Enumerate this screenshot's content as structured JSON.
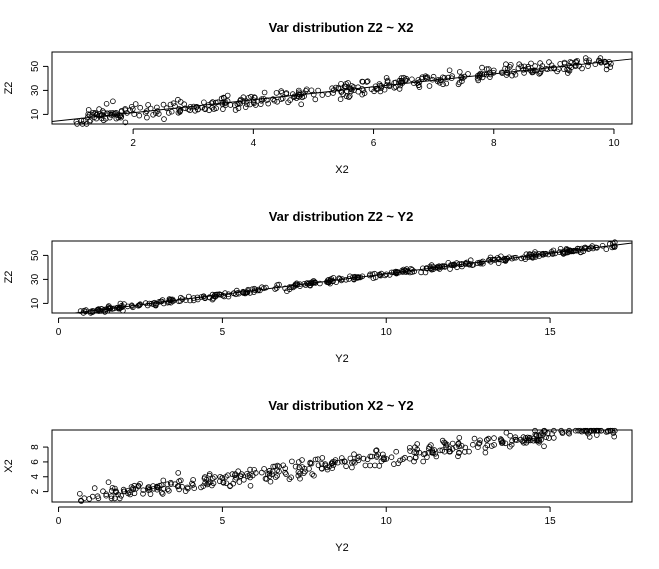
{
  "chart_data": [
    {
      "type": "scatter",
      "title": "Var distribution Z2 ~ X2",
      "xlabel": "X2",
      "ylabel": "Z2",
      "xlim": [
        0.65,
        10.3
      ],
      "ylim": [
        2,
        62
      ],
      "xticks": [
        2,
        4,
        6,
        8,
        10
      ],
      "yticks": [
        10,
        30,
        50
      ],
      "n_points": 400,
      "x_range": [
        1.05,
        9.95
      ],
      "fit_line": {
        "intercept": 0.6,
        "slope": 5.4
      },
      "noise_sd": 3.2,
      "seed": 11
    },
    {
      "type": "scatter",
      "title": "Var distribution Z2 ~ Y2",
      "xlabel": "Y2",
      "ylabel": "Z2",
      "xlim": [
        -0.2,
        17.5
      ],
      "ylim": [
        2,
        62
      ],
      "xticks": [
        0,
        5,
        10,
        15
      ],
      "yticks": [
        10,
        30,
        50
      ],
      "n_points": 400,
      "x_range": [
        0.6,
        17.0
      ],
      "fit_line": {
        "intercept": 0.3,
        "slope": 3.43
      },
      "noise_sd": 1.1,
      "seed": 23
    },
    {
      "type": "scatter",
      "title": "Var distribution X2 ~ Y2",
      "xlabel": "Y2",
      "ylabel": "X2",
      "xlim": [
        -0.2,
        17.5
      ],
      "ylim": [
        0.6,
        10.3
      ],
      "xticks": [
        0,
        5,
        10,
        15
      ],
      "yticks": [
        2,
        4,
        6,
        8
      ],
      "n_points": 400,
      "x_range": [
        0.6,
        17.0
      ],
      "fit_line": {
        "intercept": 0.7,
        "slope": 0.59
      },
      "noise_sd": 0.55,
      "seed": 37
    }
  ]
}
